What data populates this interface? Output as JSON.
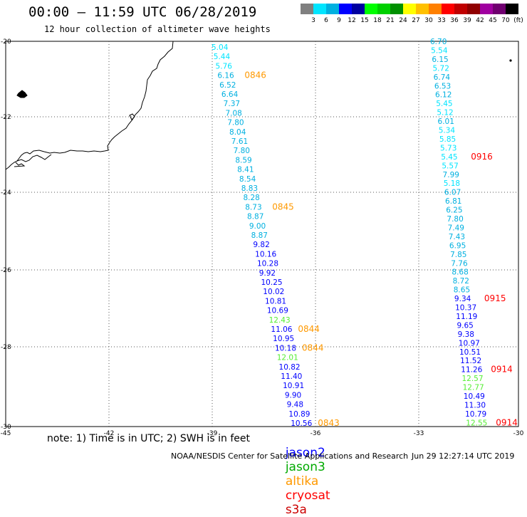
{
  "title": "00:00 – 11:59 UTC 06/28/2019",
  "subtitle": "12 hour collection of altimeter wave heights",
  "color_scale": {
    "labels": [
      "3",
      "6",
      "9",
      "12",
      "15",
      "18",
      "21",
      "24",
      "27",
      "30",
      "33",
      "36",
      "39",
      "42",
      "45",
      "70",
      "(ft)"
    ],
    "colors": [
      "#808080",
      "#00e5ff",
      "#00b0e0",
      "#0000ff",
      "#0000a0",
      "#00ff00",
      "#00d000",
      "#009000",
      "#ffff00",
      "#ffc000",
      "#ff8000",
      "#ff0000",
      "#c00000",
      "#900000",
      "#a000a0",
      "#700070",
      "#000000"
    ]
  },
  "axes": {
    "lon_ticks": [
      "-45",
      "-42",
      "-39",
      "-36",
      "-33",
      "-30"
    ],
    "lat_ticks": [
      "-20",
      "-22",
      "-24",
      "-26",
      "-28",
      "-30"
    ]
  },
  "track_left": {
    "values": [
      {
        "v": "5.04",
        "c": "#00e5ff"
      },
      {
        "v": "5.44",
        "c": "#00e5ff"
      },
      {
        "v": "5.76",
        "c": "#00e5ff"
      },
      {
        "v": "6.16",
        "c": "#00b0e0"
      },
      {
        "v": "6.52",
        "c": "#00b0e0"
      },
      {
        "v": "6.64",
        "c": "#00b0e0"
      },
      {
        "v": "7.37",
        "c": "#00b0e0"
      },
      {
        "v": "7.08",
        "c": "#00b0e0"
      },
      {
        "v": "7.80",
        "c": "#00b0e0"
      },
      {
        "v": "8.04",
        "c": "#00b0e0"
      },
      {
        "v": "7.61",
        "c": "#00b0e0"
      },
      {
        "v": "7.80",
        "c": "#00b0e0"
      },
      {
        "v": "8.59",
        "c": "#00b0e0"
      },
      {
        "v": "8.41",
        "c": "#00b0e0"
      },
      {
        "v": "8.54",
        "c": "#00b0e0"
      },
      {
        "v": "8.83",
        "c": "#00b0e0"
      },
      {
        "v": "8.28",
        "c": "#00b0e0"
      },
      {
        "v": "8.73",
        "c": "#00b0e0"
      },
      {
        "v": "8.87",
        "c": "#00b0e0"
      },
      {
        "v": "9.00",
        "c": "#00b0e0"
      },
      {
        "v": "8.87",
        "c": "#00b0e0"
      },
      {
        "v": "9.82",
        "c": "#0000ff"
      },
      {
        "v": "10.16",
        "c": "#0000ff"
      },
      {
        "v": "10.28",
        "c": "#0000ff"
      },
      {
        "v": "9.92",
        "c": "#0000ff"
      },
      {
        "v": "10.25",
        "c": "#0000ff"
      },
      {
        "v": "10.02",
        "c": "#0000ff"
      },
      {
        "v": "10.81",
        "c": "#0000ff"
      },
      {
        "v": "10.69",
        "c": "#0000ff"
      },
      {
        "v": "12.43",
        "c": "#55ee33"
      },
      {
        "v": "11.06",
        "c": "#0000ff"
      },
      {
        "v": "10.95",
        "c": "#0000ff"
      },
      {
        "v": "10.18",
        "c": "#0000ff"
      },
      {
        "v": "12.01",
        "c": "#55ee33"
      },
      {
        "v": "10.82",
        "c": "#0000ff"
      },
      {
        "v": "11.40",
        "c": "#0000ff"
      },
      {
        "v": "10.91",
        "c": "#0000ff"
      },
      {
        "v": "9.90",
        "c": "#0000ff"
      },
      {
        "v": "9.48",
        "c": "#0000ff"
      },
      {
        "v": "10.89",
        "c": "#0000ff"
      },
      {
        "v": "10.56",
        "c": "#0000ff"
      }
    ],
    "times": [
      {
        "t": "0846",
        "row": 3
      },
      {
        "t": "0845",
        "row": 17
      },
      {
        "t": "0844",
        "row": 30
      },
      {
        "t": "0844",
        "row": 32
      },
      {
        "t": "0843",
        "row": 40
      }
    ]
  },
  "track_right": {
    "values": [
      {
        "v": "6.70",
        "c": "#00b0e0"
      },
      {
        "v": "5.54",
        "c": "#00e5ff"
      },
      {
        "v": "6.15",
        "c": "#00b0e0"
      },
      {
        "v": "5.72",
        "c": "#00e5ff"
      },
      {
        "v": "6.74",
        "c": "#00b0e0"
      },
      {
        "v": "6.53",
        "c": "#00b0e0"
      },
      {
        "v": "6.12",
        "c": "#00b0e0"
      },
      {
        "v": "5.45",
        "c": "#00e5ff"
      },
      {
        "v": "5.12",
        "c": "#00e5ff"
      },
      {
        "v": "6.01",
        "c": "#00b0e0"
      },
      {
        "v": "5.34",
        "c": "#00e5ff"
      },
      {
        "v": "5.85",
        "c": "#00e5ff"
      },
      {
        "v": "5.73",
        "c": "#00e5ff"
      },
      {
        "v": "5.45",
        "c": "#00e5ff"
      },
      {
        "v": "5.57",
        "c": "#00e5ff"
      },
      {
        "v": "7.99",
        "c": "#00b0e0"
      },
      {
        "v": "5.18",
        "c": "#00e5ff"
      },
      {
        "v": "6.07",
        "c": "#00b0e0"
      },
      {
        "v": "6.81",
        "c": "#00b0e0"
      },
      {
        "v": "6.25",
        "c": "#00b0e0"
      },
      {
        "v": "7.80",
        "c": "#00b0e0"
      },
      {
        "v": "7.49",
        "c": "#00b0e0"
      },
      {
        "v": "7.43",
        "c": "#00b0e0"
      },
      {
        "v": "6.95",
        "c": "#00b0e0"
      },
      {
        "v": "7.85",
        "c": "#00b0e0"
      },
      {
        "v": "7.76",
        "c": "#00b0e0"
      },
      {
        "v": "8.68",
        "c": "#00b0e0"
      },
      {
        "v": "8.72",
        "c": "#00b0e0"
      },
      {
        "v": "8.65",
        "c": "#00b0e0"
      },
      {
        "v": "9.34",
        "c": "#0000ff"
      },
      {
        "v": "10.37",
        "c": "#0000ff"
      },
      {
        "v": "11.19",
        "c": "#0000ff"
      },
      {
        "v": "9.65",
        "c": "#0000ff"
      },
      {
        "v": "9.38",
        "c": "#0000ff"
      },
      {
        "v": "10.97",
        "c": "#0000ff"
      },
      {
        "v": "10.51",
        "c": "#0000ff"
      },
      {
        "v": "11.52",
        "c": "#0000ff"
      },
      {
        "v": "11.26",
        "c": "#0000ff"
      },
      {
        "v": "12.57",
        "c": "#55ee33"
      },
      {
        "v": "12.77",
        "c": "#55ee33"
      },
      {
        "v": "10.49",
        "c": "#0000ff"
      },
      {
        "v": "11.30",
        "c": "#0000ff"
      },
      {
        "v": "10.79",
        "c": "#0000ff"
      },
      {
        "v": "12.55",
        "c": "#55ee33"
      }
    ],
    "times": [
      {
        "t": "0916",
        "row": 13
      },
      {
        "t": "0915",
        "row": 29
      },
      {
        "t": "0914",
        "row": 37
      },
      {
        "t": "0914",
        "row": 43
      }
    ]
  },
  "note": "note: 1) Time is in UTC; 2) SWH is in feet",
  "missions": [
    {
      "name": "jason2",
      "color": "#0000ff"
    },
    {
      "name": "jason3",
      "color": "#00aa00"
    },
    {
      "name": "altika",
      "color": "#ff9900"
    },
    {
      "name": "cryosat",
      "color": "#ff0000"
    },
    {
      "name": "s3a",
      "color": "#cc0000"
    }
  ],
  "time_label_colors": {
    "left": "#ff9900",
    "right": "#ff0000"
  },
  "footer_left": "NOAA/NESDIS Center for Satellite Applications and Research",
  "footer_right": "Jun 29 12:27:14 UTC 2019"
}
